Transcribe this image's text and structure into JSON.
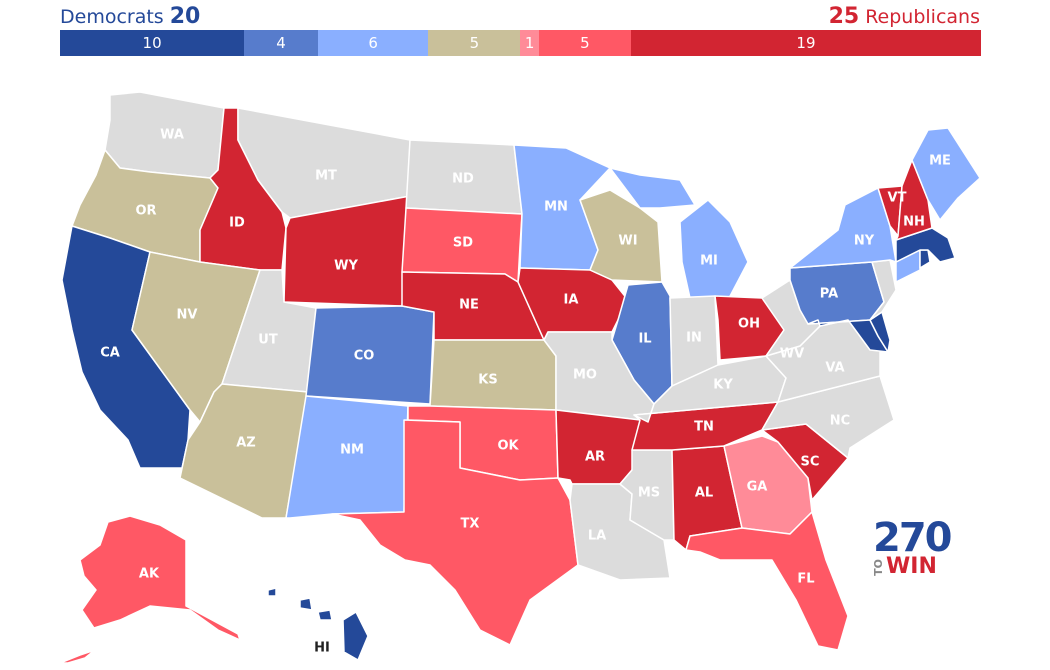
{
  "header": {
    "dem_label": "Democrats",
    "dem_total": "20",
    "rep_total": "25",
    "rep_label": "Republicans"
  },
  "summary_bar": [
    {
      "count": "10",
      "category": "safe-dem",
      "color": "#244999"
    },
    {
      "count": "4",
      "category": "likely-dem",
      "color": "#577ccc"
    },
    {
      "count": "6",
      "category": "lean-dem",
      "color": "#8aafff"
    },
    {
      "count": "5",
      "category": "tossup",
      "color": "#c9c09a"
    },
    {
      "count": "1",
      "category": "tilt-rep",
      "color": "#ff8b98"
    },
    {
      "count": "5",
      "category": "lean-rep",
      "color": "#ff5865"
    },
    {
      "count": "19",
      "category": "safe-rep",
      "color": "#d22532"
    }
  ],
  "colors": {
    "safe-dem": "#244999",
    "likely-dem": "#577ccc",
    "lean-dem": "#8aafff",
    "tossup": "#c9c09a",
    "tilt-rep": "#ff8b98",
    "lean-rep": "#ff5865",
    "safe-rep": "#d22532",
    "none": "#dcdcdc"
  },
  "states": {
    "WA": "none",
    "OR": "tossup",
    "CA": "safe-dem",
    "ID": "safe-rep",
    "NV": "tossup",
    "MT": "none",
    "WY": "safe-rep",
    "UT": "none",
    "AZ": "tossup",
    "CO": "likely-dem",
    "NM": "lean-dem",
    "ND": "none",
    "SD": "lean-rep",
    "NE": "safe-rep",
    "KS": "tossup",
    "OK": "lean-rep",
    "TX": "lean-rep",
    "MN": "lean-dem",
    "IA": "safe-rep",
    "MO": "none",
    "AR": "safe-rep",
    "LA": "none",
    "WI": "tossup",
    "IL": "likely-dem",
    "MI": "lean-dem",
    "IN": "none",
    "OH": "safe-rep",
    "KY": "none",
    "TN": "safe-rep",
    "MS": "none",
    "AL": "safe-rep",
    "GA": "tilt-rep",
    "FL": "lean-rep",
    "SC": "safe-rep",
    "NC": "none",
    "VA": "none",
    "WV": "none",
    "PA": "likely-dem",
    "NY": "lean-dem",
    "ME": "lean-dem",
    "VT": "safe-rep",
    "NH": "safe-rep",
    "MA": "safe-dem",
    "CT": "lean-dem",
    "NJ": "none",
    "MD": "safe-dem",
    "DE": "safe-dem",
    "RI": "safe-dem",
    "AK": "lean-rep",
    "HI": "safe-dem"
  },
  "labels": {
    "WA": "WA",
    "OR": "OR",
    "CA": "CA",
    "ID": "ID",
    "NV": "NV",
    "MT": "MT",
    "WY": "WY",
    "UT": "UT",
    "AZ": "AZ",
    "CO": "CO",
    "NM": "NM",
    "ND": "ND",
    "SD": "SD",
    "NE": "NE",
    "KS": "KS",
    "OK": "OK",
    "TX": "TX",
    "MN": "MN",
    "IA": "IA",
    "MO": "MO",
    "AR": "AR",
    "LA": "LA",
    "WI": "WI",
    "IL": "IL",
    "MI": "MI",
    "IN": "IN",
    "OH": "OH",
    "KY": "KY",
    "TN": "TN",
    "MS": "MS",
    "AL": "AL",
    "GA": "GA",
    "FL": "FL",
    "SC": "SC",
    "NC": "NC",
    "VA": "VA",
    "WV": "WV",
    "PA": "PA",
    "NY": "NY",
    "ME": "ME",
    "VT": "VT",
    "NH": "NH",
    "AK": "AK",
    "HI": "HI"
  },
  "logo": {
    "number": "270",
    "to": "TO",
    "win": "WIN"
  }
}
